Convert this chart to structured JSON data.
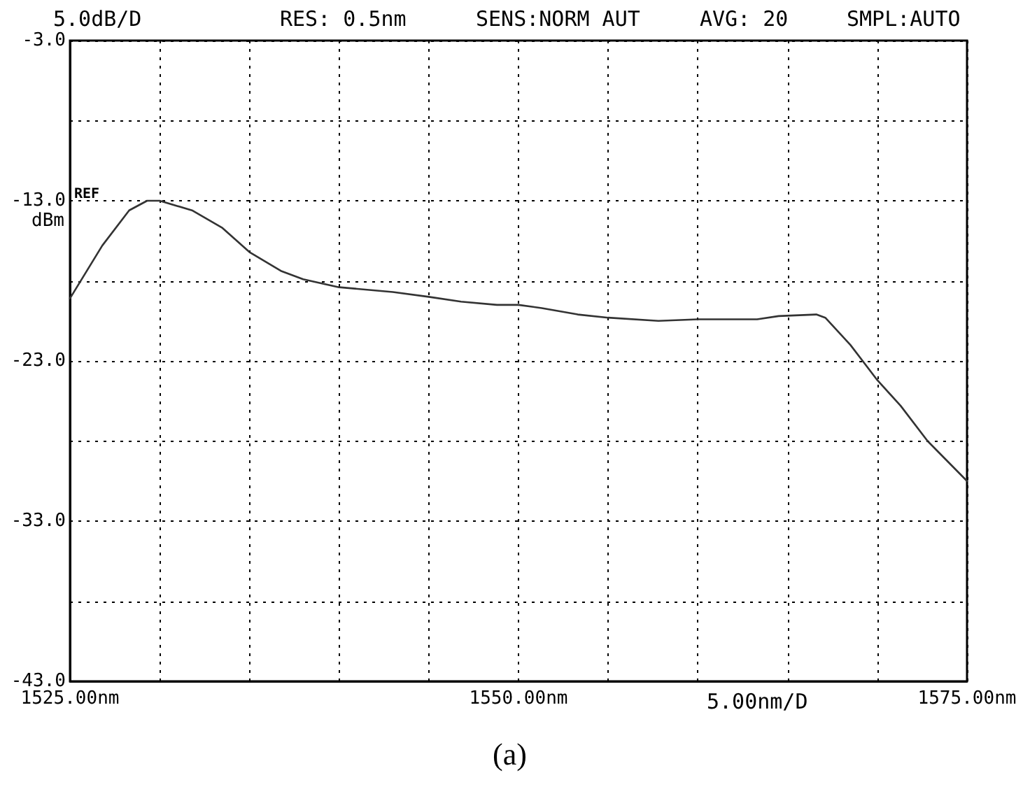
{
  "chart_data": {
    "type": "line",
    "ylabel": "dBm",
    "annotations": [
      "5.0dB/D",
      "RES: 0.5nm",
      "SENS:NORM AUT",
      "AVG: 20",
      "SMPL:AUTO",
      "5.00nm/D",
      "(a)",
      "REF"
    ],
    "x": [
      1525,
      1526.8,
      1528.3,
      1529.3,
      1530.0,
      1531.8,
      1533.5,
      1535.0,
      1536.8,
      1538.0,
      1540.0,
      1543.0,
      1545.0,
      1546.8,
      1548.8,
      1550.0,
      1551.3,
      1553.3,
      1555.0,
      1557.8,
      1560.0,
      1563.3,
      1564.5,
      1566.6,
      1567.1,
      1568.5,
      1570.0,
      1571.3,
      1572.8,
      1575.0
    ],
    "series": [
      {
        "color": "#333333",
        "values": [
          -19.1,
          -15.8,
          -13.6,
          -13.0,
          -13.0,
          -13.6,
          -14.7,
          -16.2,
          -17.4,
          -17.9,
          -18.4,
          -18.7,
          -19.0,
          -19.3,
          -19.5,
          -19.5,
          -19.7,
          -20.1,
          -20.3,
          -20.5,
          -20.4,
          -20.4,
          -20.2,
          -20.1,
          -20.3,
          -22.0,
          -24.2,
          -25.8,
          -28.0,
          -30.5
        ]
      }
    ],
    "xlim": [
      1525,
      1575
    ],
    "xticks": [
      {
        "value": 1525,
        "label": "1525.00nm"
      },
      {
        "value": 1530,
        "label": null
      },
      {
        "value": 1535,
        "label": null
      },
      {
        "value": 1540,
        "label": null
      },
      {
        "value": 1545,
        "label": null
      },
      {
        "value": 1550,
        "label": "1550.00nm"
      },
      {
        "value": 1555,
        "label": null
      },
      {
        "value": 1560,
        "label": null
      },
      {
        "value": 1565,
        "label": null
      },
      {
        "value": 1570,
        "label": null
      },
      {
        "value": 1575,
        "label": "1575.00nm"
      }
    ],
    "ylim": [
      -43,
      -3
    ],
    "yticks": [
      {
        "value": -43,
        "label": "-43.0"
      },
      {
        "value": -38,
        "label": null
      },
      {
        "value": -33,
        "label": "-33.0"
      },
      {
        "value": -28,
        "label": null
      },
      {
        "value": -23,
        "label": "-23.0"
      },
      {
        "value": -18,
        "label": null
      },
      {
        "value": -13,
        "label": "-13.0"
      },
      {
        "value": -8,
        "label": null
      },
      {
        "value": -3,
        "label": "-3.0"
      }
    ],
    "grid": true,
    "line_style": "solid",
    "marker": "none"
  }
}
